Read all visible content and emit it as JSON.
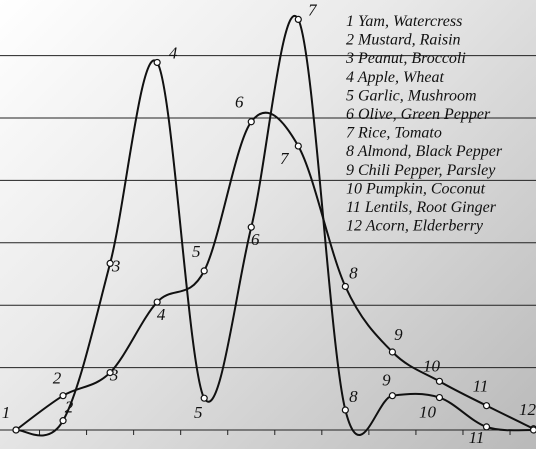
{
  "chart_data": {
    "type": "line",
    "title": "",
    "xlabel": "",
    "ylabel": "",
    "grid": true,
    "legend_position": "top-right",
    "x": [
      1,
      2,
      3,
      4,
      5,
      6,
      7,
      8,
      9,
      10,
      11,
      12
    ],
    "ylim": [
      0,
      7
    ],
    "series": [
      {
        "curve": "A",
        "values": [
          0.0,
          0.55,
          0.92,
          2.05,
          2.55,
          4.94,
          4.55,
          2.3,
          1.25,
          0.78,
          0.39,
          0.02
        ]
      },
      {
        "curve": "B",
        "values": [
          0.0,
          0.15,
          2.67,
          5.89,
          0.51,
          3.25,
          6.58,
          0.32,
          0.55,
          0.52,
          0.05,
          0.0
        ]
      }
    ],
    "point_labels": [
      "1",
      "2",
      "3",
      "4",
      "5",
      "6",
      "7",
      "8",
      "9",
      "10",
      "11",
      "12"
    ],
    "legend": [
      "1 Yam, Watercress",
      "2 Mustard, Raisin",
      "3 Peanut, Broccoli",
      "4 Apple, Wheat",
      "5 Garlic, Mushroom",
      "6 Olive, Green Pepper",
      "7 Rice, Tomato",
      "8 Almond, Black Pepper",
      "9 Chili Pepper, Parsley",
      "10 Pumpkin, Coconut",
      "11 Lentils, Root Ginger",
      "12 Acorn, Elderberry"
    ]
  }
}
